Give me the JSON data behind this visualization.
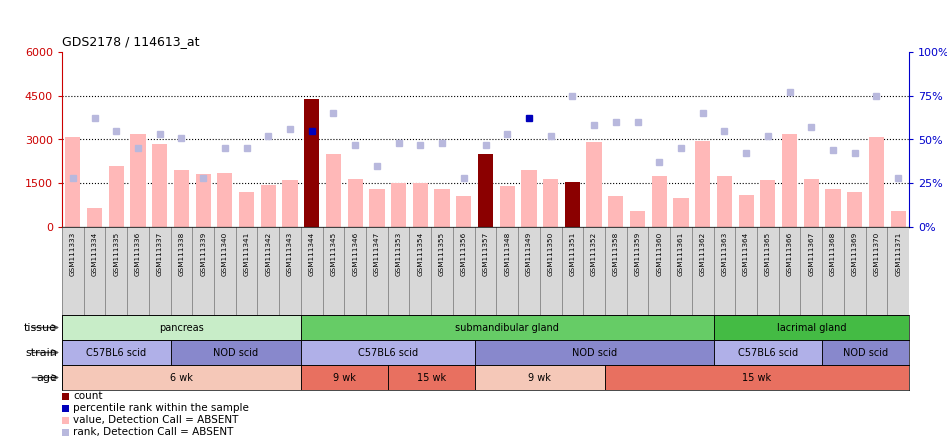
{
  "title": "GDS2178 / 114613_at",
  "samples": [
    "GSM111333",
    "GSM111334",
    "GSM111335",
    "GSM111336",
    "GSM111337",
    "GSM111338",
    "GSM111339",
    "GSM111340",
    "GSM111341",
    "GSM111342",
    "GSM111343",
    "GSM111344",
    "GSM111345",
    "GSM111346",
    "GSM111347",
    "GSM111353",
    "GSM111354",
    "GSM111355",
    "GSM111356",
    "GSM111357",
    "GSM111348",
    "GSM111349",
    "GSM111350",
    "GSM111351",
    "GSM111352",
    "GSM111358",
    "GSM111359",
    "GSM111360",
    "GSM111361",
    "GSM111362",
    "GSM111363",
    "GSM111364",
    "GSM111365",
    "GSM111366",
    "GSM111367",
    "GSM111368",
    "GSM111369",
    "GSM111370",
    "GSM111371"
  ],
  "bar_values": [
    3100,
    650,
    2100,
    3200,
    2850,
    1950,
    1800,
    1850,
    1200,
    1430,
    1600,
    4400,
    2500,
    1650,
    1300,
    1520,
    1500,
    1300,
    1050,
    2500,
    1400,
    1950,
    1650,
    1550,
    2900,
    1050,
    550,
    1750,
    1000,
    2950,
    1750,
    1100,
    1600,
    3200,
    1650,
    1300,
    1200,
    3100,
    550
  ],
  "bar_colors_dark": [
    false,
    false,
    false,
    false,
    false,
    false,
    false,
    false,
    false,
    false,
    false,
    true,
    false,
    false,
    false,
    false,
    false,
    false,
    false,
    true,
    false,
    false,
    false,
    true,
    false,
    false,
    false,
    false,
    false,
    false,
    false,
    false,
    false,
    false,
    false,
    false,
    false,
    false,
    false
  ],
  "rank_values": [
    28,
    62,
    55,
    45,
    53,
    51,
    28,
    45,
    45,
    52,
    56,
    55,
    65,
    47,
    35,
    48,
    47,
    48,
    28,
    47,
    53,
    62,
    52,
    75,
    58,
    60,
    60,
    37,
    45,
    65,
    55,
    42,
    52,
    77,
    57,
    44,
    42,
    75,
    28
  ],
  "rank_dark": [
    false,
    false,
    false,
    false,
    false,
    false,
    false,
    false,
    false,
    false,
    false,
    true,
    false,
    false,
    false,
    false,
    false,
    false,
    false,
    false,
    false,
    true,
    false,
    false,
    false,
    false,
    false,
    false,
    false,
    false,
    false,
    false,
    false,
    false,
    false,
    false,
    false,
    false,
    false
  ],
  "ylim_left": [
    0,
    6000
  ],
  "ylim_right": [
    0,
    100
  ],
  "yticks_left": [
    0,
    1500,
    3000,
    4500,
    6000
  ],
  "yticks_right": [
    0,
    25,
    50,
    75,
    100
  ],
  "hlines": [
    1500,
    3000,
    4500
  ],
  "tissue_groups": [
    {
      "label": "pancreas",
      "start": 0,
      "end": 11,
      "color": "#c8edc8"
    },
    {
      "label": "submandibular gland",
      "start": 11,
      "end": 30,
      "color": "#66cc66"
    },
    {
      "label": "lacrimal gland",
      "start": 30,
      "end": 39,
      "color": "#44bb44"
    }
  ],
  "strain_groups": [
    {
      "label": "C57BL6 scid",
      "start": 0,
      "end": 5,
      "color": "#b0b0e8"
    },
    {
      "label": "NOD scid",
      "start": 5,
      "end": 11,
      "color": "#8888cc"
    },
    {
      "label": "C57BL6 scid",
      "start": 11,
      "end": 19,
      "color": "#b0b0e8"
    },
    {
      "label": "NOD scid",
      "start": 19,
      "end": 30,
      "color": "#8888cc"
    },
    {
      "label": "C57BL6 scid",
      "start": 30,
      "end": 35,
      "color": "#b0b0e8"
    },
    {
      "label": "NOD scid",
      "start": 35,
      "end": 39,
      "color": "#8888cc"
    }
  ],
  "age_groups": [
    {
      "label": "6 wk",
      "start": 0,
      "end": 11,
      "color": "#f5c8b8"
    },
    {
      "label": "9 wk",
      "start": 11,
      "end": 15,
      "color": "#e87060"
    },
    {
      "label": "15 wk",
      "start": 15,
      "end": 19,
      "color": "#e87060"
    },
    {
      "label": "9 wk",
      "start": 19,
      "end": 25,
      "color": "#f5c8b8"
    },
    {
      "label": "15 wk",
      "start": 25,
      "end": 39,
      "color": "#e87060"
    }
  ],
  "bar_color_light": "#ffb8b8",
  "bar_color_dark": "#8b0000",
  "rank_color_light": "#b8b8dd",
  "rank_color_dark": "#0000bb",
  "bg_color": "#ffffff",
  "left_axis_color": "#cc0000",
  "right_axis_color": "#0000cc",
  "xlabels_bg": "#d8d8d8"
}
